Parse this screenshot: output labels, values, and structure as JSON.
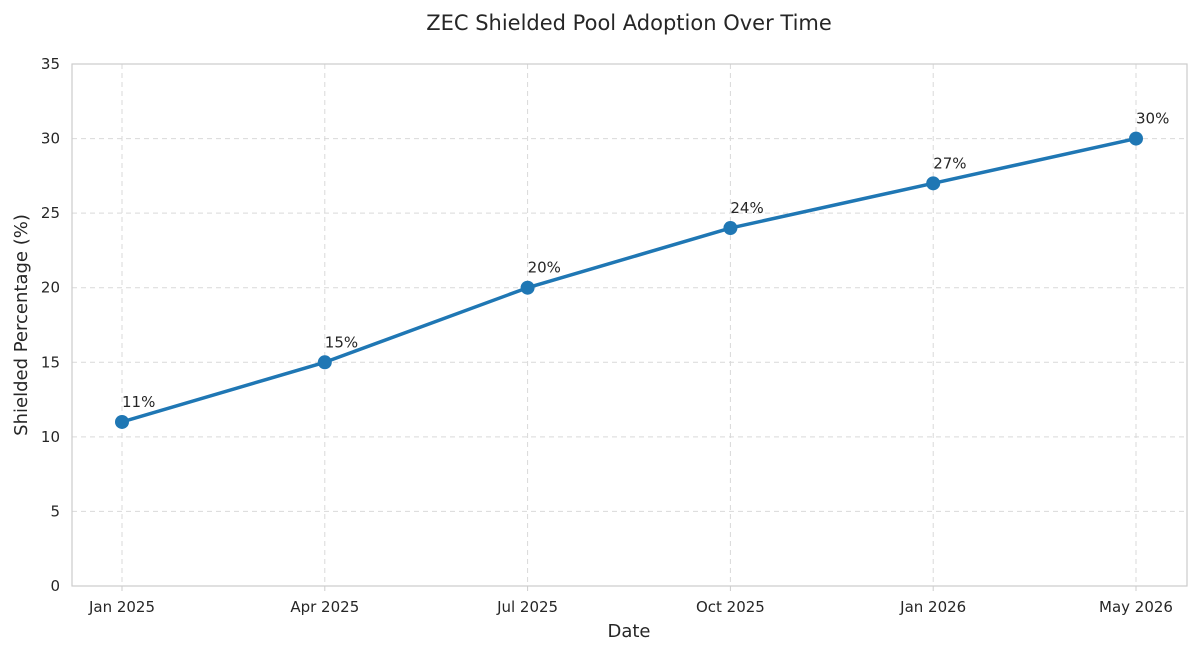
{
  "chart_data": {
    "type": "line",
    "title": "ZEC Shielded Pool Adoption Over Time",
    "xlabel": "Date",
    "ylabel": "Shielded Percentage (%)",
    "x": [
      "Jan 2025",
      "Apr 2025",
      "Jul 2025",
      "Oct 2025",
      "Jan 2026",
      "May 2026"
    ],
    "series": [
      {
        "values": [
          11,
          15,
          20,
          24,
          27,
          30
        ],
        "labels": [
          "11%",
          "15%",
          "20%",
          "24%",
          "27%",
          "30%"
        ],
        "color": "#1f77b4"
      }
    ],
    "ylim": [
      0,
      35
    ],
    "yticks": [
      0,
      5,
      10,
      15,
      20,
      25,
      30,
      35
    ],
    "grid": true,
    "grid_style": "dashed"
  }
}
